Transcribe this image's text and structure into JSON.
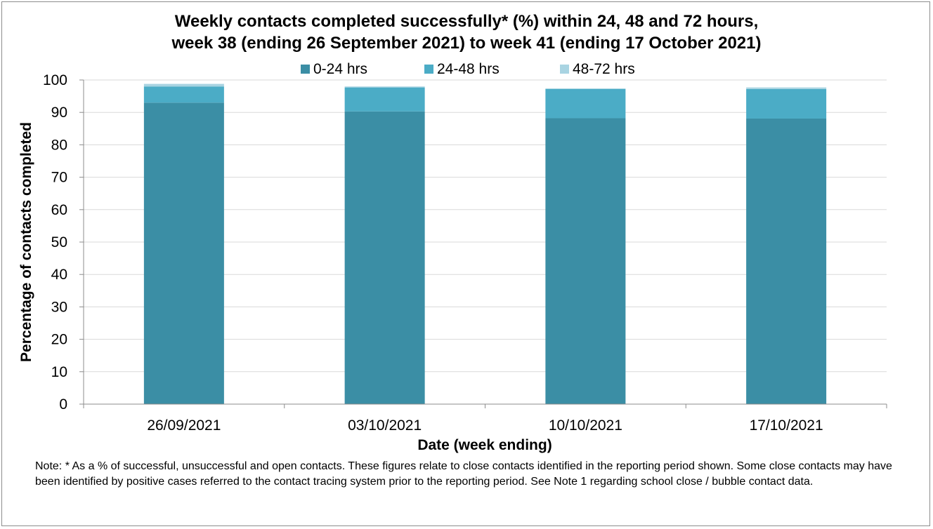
{
  "chart_data": {
    "type": "bar",
    "stacked": true,
    "title_line1": "Weekly contacts completed successfully* (%) within 24, 48 and 72 hours,",
    "title_line2": "week 38 (ending 26 September 2021) to week 41 (ending 17 October 2021)",
    "xlabel": "Date (week ending)",
    "ylabel": "Percentage of contacts completed",
    "categories": [
      "26/09/2021",
      "03/10/2021",
      "10/10/2021",
      "17/10/2021"
    ],
    "ylim": [
      0,
      100
    ],
    "yticks": [
      0,
      10,
      20,
      30,
      40,
      50,
      60,
      70,
      80,
      90,
      100
    ],
    "grid": true,
    "legend_position": "top",
    "series": [
      {
        "name": "0-24 hrs",
        "color": "#3b8ea5",
        "values": [
          93.0,
          90.3,
          88.2,
          88.1
        ]
      },
      {
        "name": "24-48 hrs",
        "color": "#4bacc6",
        "values": [
          5.0,
          7.4,
          9.0,
          9.1
        ]
      },
      {
        "name": "48-72 hrs",
        "color": "#a9d4e2",
        "values": [
          0.8,
          0.3,
          0.2,
          0.5
        ]
      }
    ]
  },
  "note": "Note: * As a % of successful, unsuccessful and open contacts. These figures relate to close contacts identified in the reporting period shown. Some close contacts may have been identified by positive cases referred to the contact tracing system prior to the reporting period. See Note 1 regarding school close / bubble contact data."
}
